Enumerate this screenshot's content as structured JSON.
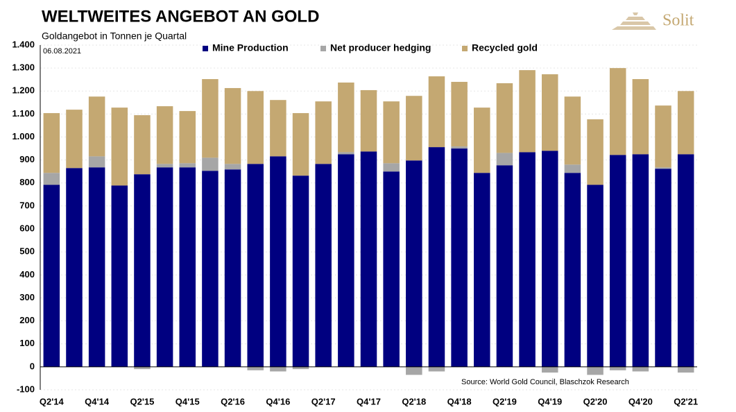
{
  "chart_data": {
    "type": "stacked_bar",
    "title": "WELTWEITES ANGEBOT AN GOLD",
    "subtitle": "Goldangebot in Tonnen je Quartal",
    "date": "06.08.2021",
    "source": "Source: World Gold Council, Blaschzok Research",
    "brand": "Solit",
    "categories": [
      "Q2'14",
      null,
      "Q4'14",
      null,
      "Q2'15",
      null,
      "Q4'15",
      null,
      "Q2'16",
      null,
      "Q4'16",
      null,
      "Q2'17",
      null,
      "Q4'17",
      null,
      "Q2'18",
      null,
      "Q4'18",
      null,
      "Q2'19",
      null,
      "Q4'19",
      null,
      "Q2'20",
      null,
      "Q4'20",
      null,
      "Q2'21"
    ],
    "series": [
      {
        "name": "Mine Production",
        "color": "#000080",
        "values": [
          792,
          865,
          868,
          789,
          838,
          868,
          868,
          853,
          859,
          883,
          916,
          832,
          883,
          925,
          937,
          850,
          898,
          956,
          950,
          844,
          877,
          934,
          940,
          844,
          792,
          922,
          925,
          862,
          925
        ]
      },
      {
        "name": "Net producer hedging",
        "color": "#a6a6a6",
        "values": [
          52,
          0,
          48,
          0,
          -10,
          15,
          18,
          57,
          24,
          -15,
          -20,
          -10,
          0,
          9,
          0,
          36,
          -35,
          -20,
          9,
          0,
          54,
          0,
          -25,
          36,
          -35,
          -15,
          -20,
          6,
          -25
        ]
      },
      {
        "name": "Recycled gold",
        "color": "#c4a872",
        "values": [
          260,
          254,
          260,
          339,
          257,
          251,
          227,
          342,
          330,
          317,
          245,
          272,
          272,
          303,
          267,
          269,
          281,
          308,
          281,
          284,
          303,
          357,
          333,
          296,
          285,
          378,
          327,
          269,
          275
        ]
      }
    ],
    "ylim": [
      -100,
      1400
    ],
    "yticks": [
      -100,
      0,
      100,
      200,
      300,
      400,
      500,
      600,
      700,
      800,
      900,
      {
        "value": 1000,
        "label": "1.000"
      },
      {
        "value": 1100,
        "label": "1.100"
      },
      {
        "value": 1200,
        "label": "1.200"
      },
      {
        "value": 1300,
        "label": "1.300"
      },
      {
        "value": 1400,
        "label": "1.400"
      }
    ],
    "grid": true,
    "legend": "top"
  }
}
